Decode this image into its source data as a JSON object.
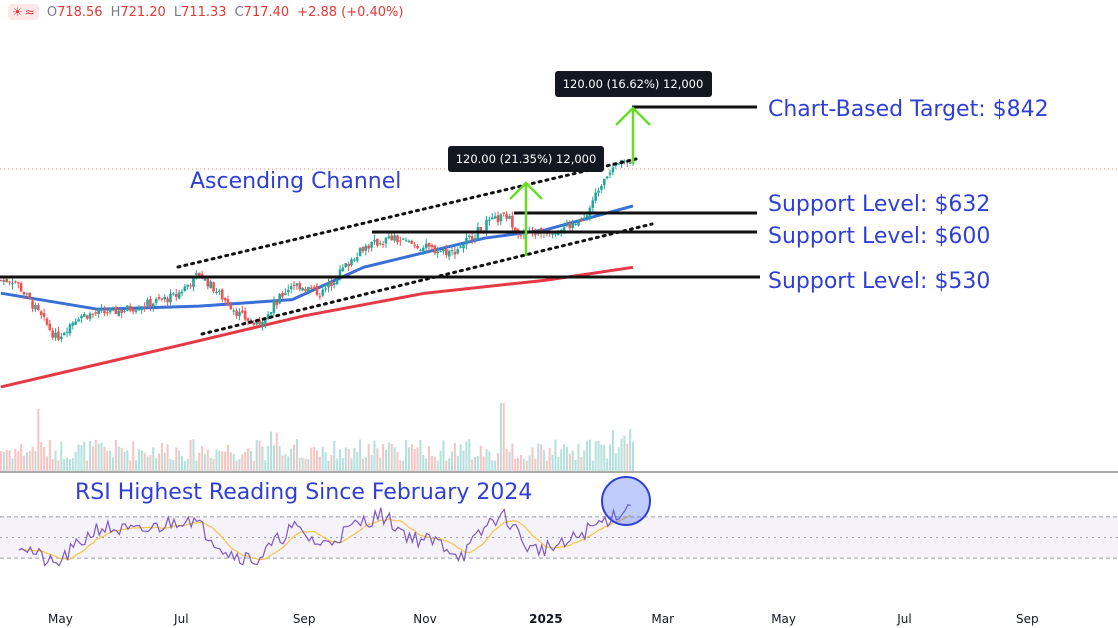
{
  "header": {
    "icons": [
      "weather-icon",
      "wave-icon"
    ],
    "open_label": "O",
    "open": "718.56",
    "high_label": "H",
    "high": "721.20",
    "low_label": "L",
    "low": "711.33",
    "close_label": "C",
    "close": "717.40",
    "change": "+2.88 (+0.40%)"
  },
  "annotations": {
    "channel_label": "Ascending Channel",
    "target_label": "Chart-Based Target: $842",
    "support_632": "Support Level: $632",
    "support_600": "Support Level: $600",
    "support_530": "Support Level: $530",
    "measure_1": "120.00 (21.35%) 12,000",
    "measure_2": "120.00 (16.62%) 12,000",
    "rsi_label": "RSI Highest Reading Since February 2024"
  },
  "colors": {
    "candle_up": "#26a69a",
    "candle_down": "#ef5350",
    "ma_fast": "#3b6fd8",
    "ma_slow": "#e53946",
    "annotation_text": "#2f3fd6",
    "arrow": "#66dd22",
    "rsi_line": "#7e57c2",
    "rsi_ma": "#f5c542"
  },
  "chart_data": {
    "type": "candlestick",
    "x_ticks": [
      "May",
      "Jul",
      "Sep",
      "Nov",
      "2025",
      "Mar",
      "May",
      "Jul",
      "Sep"
    ],
    "price_levels": {
      "target": 842,
      "support_632": 632,
      "support_600": 600,
      "support_530": 530
    },
    "ohlc_last": {
      "open": 718.56,
      "high": 721.2,
      "low": 711.33,
      "close": 717.4,
      "change": 2.88,
      "change_pct": 0.4
    },
    "measures": [
      {
        "price_move": 120.0,
        "pct": 21.35,
        "volume": 12000
      },
      {
        "price_move": 120.0,
        "pct": 16.62,
        "volume": 12000
      }
    ],
    "close_path": [
      {
        "date": "2024-04-08",
        "close": 525
      },
      {
        "date": "2024-04-29",
        "close": 435
      },
      {
        "date": "2024-05-10",
        "close": 470
      },
      {
        "date": "2024-06-01",
        "close": 478
      },
      {
        "date": "2024-06-28",
        "close": 500
      },
      {
        "date": "2024-07-10",
        "close": 535
      },
      {
        "date": "2024-07-31",
        "close": 470
      },
      {
        "date": "2024-08-08",
        "close": 455
      },
      {
        "date": "2024-08-26",
        "close": 520
      },
      {
        "date": "2024-09-10",
        "close": 505
      },
      {
        "date": "2024-09-30",
        "close": 575
      },
      {
        "date": "2024-10-15",
        "close": 590
      },
      {
        "date": "2024-11-01",
        "close": 575
      },
      {
        "date": "2024-11-15",
        "close": 568
      },
      {
        "date": "2024-12-02",
        "close": 612
      },
      {
        "date": "2024-12-12",
        "close": 625
      },
      {
        "date": "2024-12-20",
        "close": 595
      },
      {
        "date": "2025-01-08",
        "close": 605
      },
      {
        "date": "2025-01-20",
        "close": 615
      },
      {
        "date": "2025-01-31",
        "close": 690
      },
      {
        "date": "2025-02-14",
        "close": 717
      }
    ],
    "ma_fast_path": [
      {
        "date": "2024-04-01",
        "ma": 505
      },
      {
        "date": "2024-05-20",
        "ma": 480
      },
      {
        "date": "2024-07-10",
        "ma": 485
      },
      {
        "date": "2024-08-26",
        "ma": 495
      },
      {
        "date": "2024-10-01",
        "ma": 545
      },
      {
        "date": "2024-11-01",
        "ma": 568
      },
      {
        "date": "2024-12-01",
        "ma": 590
      },
      {
        "date": "2025-01-01",
        "ma": 603
      },
      {
        "date": "2025-02-14",
        "ma": 640
      }
    ],
    "ma_slow_path": [
      {
        "date": "2024-04-01",
        "ma": 360
      },
      {
        "date": "2024-07-01",
        "ma": 425
      },
      {
        "date": "2024-09-01",
        "ma": 470
      },
      {
        "date": "2024-11-01",
        "ma": 505
      },
      {
        "date": "2025-01-01",
        "ma": 525
      },
      {
        "date": "2025-02-14",
        "ma": 545
      }
    ],
    "rsi_levels": [
      70,
      50,
      30
    ],
    "rsi_path": [
      {
        "date": "2024-04-10",
        "rsi": 45
      },
      {
        "date": "2024-04-28",
        "rsi": 22
      },
      {
        "date": "2024-05-20",
        "rsi": 60
      },
      {
        "date": "2024-06-10",
        "rsi": 55
      },
      {
        "date": "2024-07-05",
        "rsi": 70
      },
      {
        "date": "2024-07-25",
        "rsi": 35
      },
      {
        "date": "2024-08-08",
        "rsi": 28
      },
      {
        "date": "2024-08-26",
        "rsi": 60
      },
      {
        "date": "2024-09-10",
        "rsi": 42
      },
      {
        "date": "2024-09-30",
        "rsi": 65
      },
      {
        "date": "2024-10-10",
        "rsi": 72
      },
      {
        "date": "2024-10-25",
        "rsi": 50
      },
      {
        "date": "2024-11-08",
        "rsi": 45
      },
      {
        "date": "2024-11-20",
        "rsi": 32
      },
      {
        "date": "2024-12-05",
        "rsi": 68
      },
      {
        "date": "2024-12-12",
        "rsi": 70
      },
      {
        "date": "2024-12-24",
        "rsi": 38
      },
      {
        "date": "2025-01-10",
        "rsi": 42
      },
      {
        "date": "2025-01-20",
        "rsi": 55
      },
      {
        "date": "2025-02-14",
        "rsi": 82
      }
    ]
  }
}
